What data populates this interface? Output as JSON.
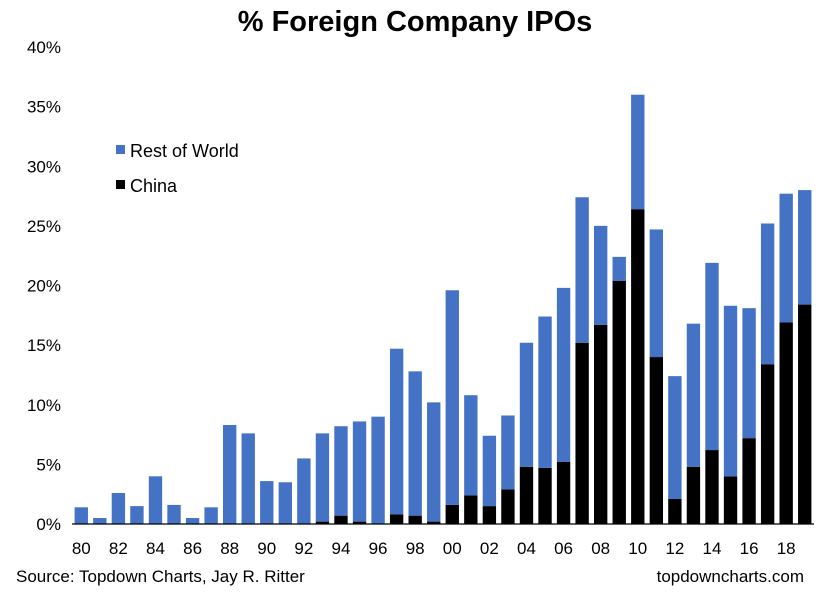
{
  "chart_data": {
    "type": "bar",
    "stacked": true,
    "title": "% Foreign Company IPOs",
    "categories": [
      "80",
      "81",
      "82",
      "83",
      "84",
      "85",
      "86",
      "87",
      "88",
      "89",
      "90",
      "91",
      "92",
      "93",
      "94",
      "95",
      "96",
      "97",
      "98",
      "99",
      "00",
      "01",
      "02",
      "03",
      "04",
      "05",
      "06",
      "07",
      "08",
      "09",
      "10",
      "11",
      "12",
      "13",
      "14",
      "15",
      "16",
      "17",
      "18",
      "19"
    ],
    "x_tick_labels": [
      "80",
      "82",
      "84",
      "86",
      "88",
      "90",
      "92",
      "94",
      "96",
      "98",
      "00",
      "02",
      "04",
      "06",
      "08",
      "10",
      "12",
      "14",
      "16",
      "18"
    ],
    "series": [
      {
        "name": "China",
        "color": "#000000",
        "values": [
          0,
          0,
          0,
          0,
          0,
          0,
          0,
          0,
          0,
          0,
          0,
          0,
          0,
          0.2,
          0.7,
          0.2,
          0,
          0.8,
          0.7,
          0.2,
          1.6,
          2.4,
          1.5,
          2.9,
          4.8,
          4.7,
          5.2,
          15.2,
          16.7,
          20.4,
          26.4,
          14.0,
          2.1,
          4.8,
          6.2,
          4.0,
          7.2,
          13.4,
          16.9,
          18.4
        ]
      },
      {
        "name": "Rest of World",
        "color": "#4472C4",
        "values": [
          1.4,
          0.5,
          2.6,
          1.5,
          4.0,
          1.6,
          0.5,
          1.4,
          8.3,
          7.6,
          3.6,
          3.5,
          5.5,
          7.4,
          7.5,
          8.4,
          9.0,
          13.9,
          12.1,
          10.0,
          18.0,
          8.4,
          5.9,
          6.2,
          10.4,
          12.7,
          14.6,
          12.2,
          8.3,
          2.0,
          9.6,
          10.7,
          10.3,
          12.0,
          15.7,
          14.3,
          10.9,
          11.8,
          10.8,
          9.6
        ]
      }
    ],
    "y_ticks": [
      "0%",
      "5%",
      "10%",
      "15%",
      "20%",
      "25%",
      "30%",
      "35%",
      "40%"
    ],
    "ylim": [
      0,
      40
    ],
    "legend_position": "left",
    "grid": false
  },
  "footer": {
    "source": "Source: Topdown Charts, Jay R. Ritter",
    "site": "topdowncharts.com"
  }
}
